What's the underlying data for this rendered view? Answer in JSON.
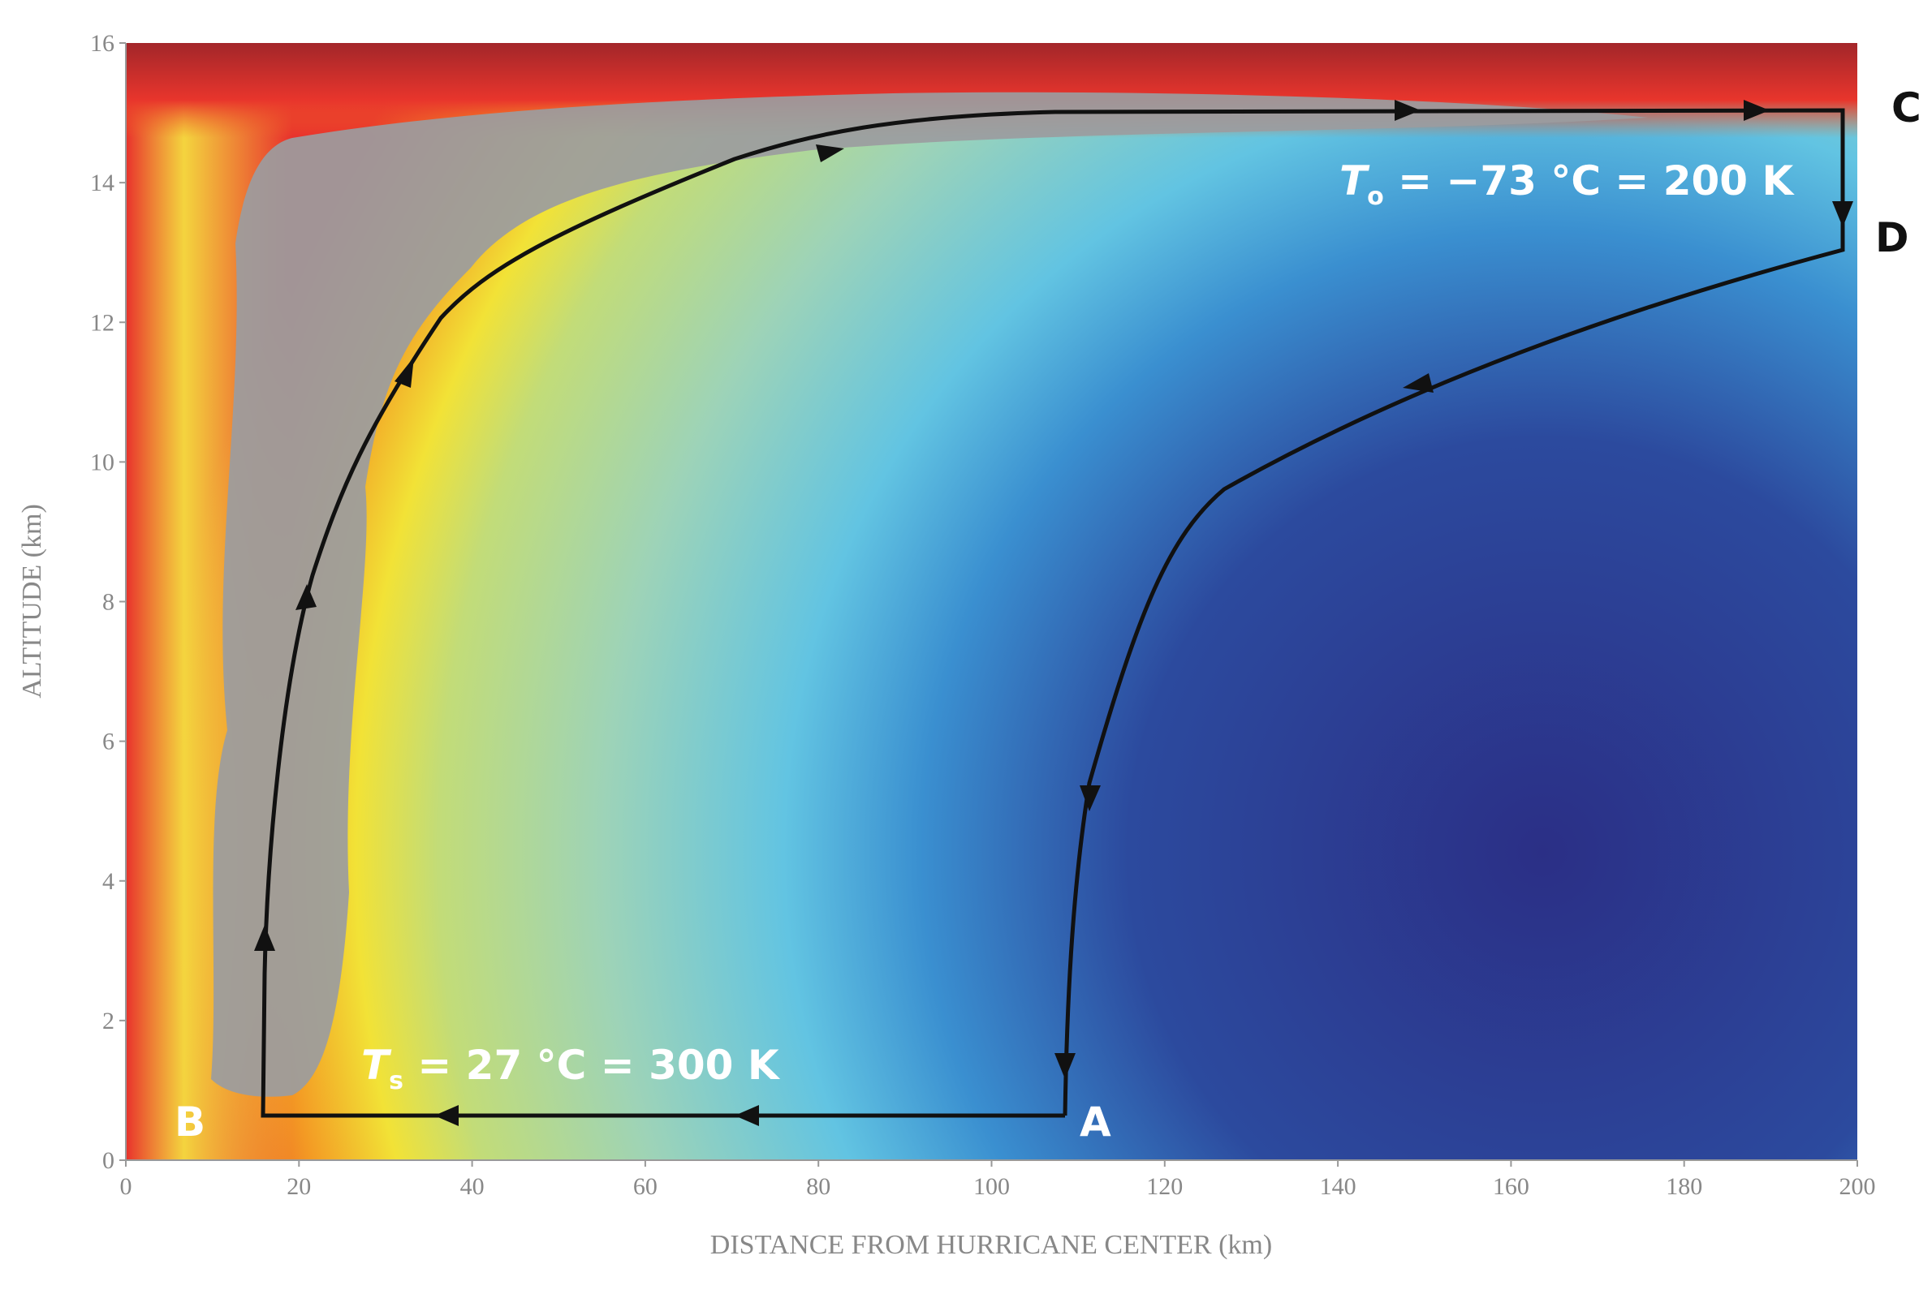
{
  "chart_data": {
    "type": "cycle",
    "xlabel": "DISTANCE FROM HURRICANE CENTER (km)",
    "ylabel": "ALTITUDE (km)",
    "xlim": [
      0,
      200
    ],
    "xticks": [
      0,
      20,
      40,
      60,
      80,
      100,
      120,
      140,
      160,
      180,
      200
    ],
    "ylim": [
      0,
      16
    ],
    "yticks": [
      0,
      2,
      4,
      6,
      8,
      10,
      12,
      14,
      16
    ],
    "points": [
      "A",
      "B",
      "C",
      "D"
    ],
    "annotations": [
      {
        "symbol": "T",
        "subscript": "o",
        "text": " = −73 °C = 200 K"
      },
      {
        "symbol": "T",
        "subscript": "s",
        "text": " = 27 °C = 300 K"
      }
    ]
  }
}
